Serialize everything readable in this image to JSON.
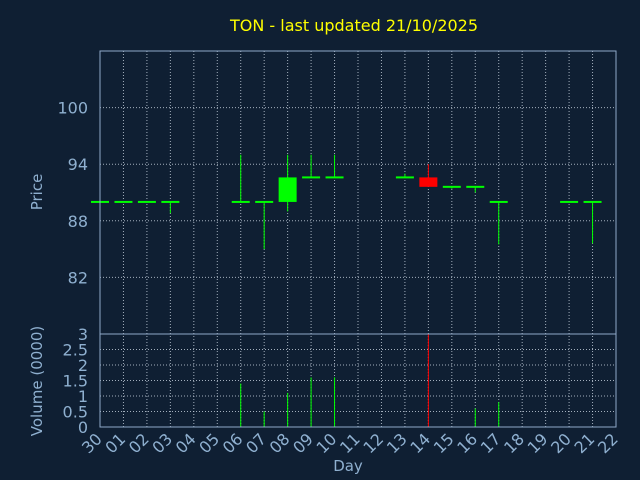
{
  "colors": {
    "background": "#0f1f33",
    "title": "#ffff00",
    "axis_text": "#8fb0d0",
    "frame": "#8fa8c8",
    "grid": "#c8d4e0",
    "up": "#00ff00",
    "down": "#ff0000"
  },
  "chart_data": {
    "type": "candlestick",
    "title": "TON - last updated 21/10/2025",
    "xlabel": "Day",
    "grid": true,
    "x_ticks": [
      "30",
      "01",
      "02",
      "03",
      "04",
      "05",
      "06",
      "07",
      "08",
      "09",
      "10",
      "11",
      "12",
      "13",
      "14",
      "15",
      "16",
      "17",
      "18",
      "19",
      "20",
      "21",
      "22"
    ],
    "price_panel": {
      "ylabel": "Price",
      "ylim": [
        76,
        106
      ],
      "y_ticks": [
        82,
        88,
        94,
        100
      ],
      "y_tick_labels": [
        "82",
        "88",
        "94",
        "100"
      ]
    },
    "volume_panel": {
      "ylabel": "Volume (0000)",
      "ylim": [
        0,
        3
      ],
      "y_ticks": [
        0,
        0.5,
        1,
        1.5,
        2,
        2.5,
        3
      ],
      "y_tick_labels": [
        "0",
        "0.5",
        "1",
        "1.5",
        "2",
        "2.5",
        "3"
      ]
    },
    "candles": [
      {
        "x": "30",
        "open": 90.0,
        "high": 90.0,
        "low": 90.0,
        "close": 90.0
      },
      {
        "x": "01",
        "open": 90.0,
        "high": 90.0,
        "low": 90.0,
        "close": 90.0
      },
      {
        "x": "02",
        "open": 90.0,
        "high": 90.0,
        "low": 90.0,
        "close": 90.0
      },
      {
        "x": "03",
        "open": 90.0,
        "high": 90.0,
        "low": 88.8,
        "close": 90.0
      },
      {
        "x": "06",
        "open": 90.0,
        "high": 95.0,
        "low": 90.0,
        "close": 90.0
      },
      {
        "x": "07",
        "open": 90.0,
        "high": 90.0,
        "low": 85.0,
        "close": 90.0
      },
      {
        "x": "08",
        "open": 90.0,
        "high": 95.0,
        "low": 89.0,
        "close": 92.6
      },
      {
        "x": "09",
        "open": 92.6,
        "high": 95.0,
        "low": 92.6,
        "close": 92.6
      },
      {
        "x": "10",
        "open": 92.6,
        "high": 95.0,
        "low": 92.6,
        "close": 92.6
      },
      {
        "x": "13",
        "open": 92.6,
        "high": 93.0,
        "low": 92.6,
        "close": 92.6
      },
      {
        "x": "14",
        "open": 92.6,
        "high": 94.0,
        "low": 91.6,
        "close": 91.6
      },
      {
        "x": "15",
        "open": 91.6,
        "high": 91.6,
        "low": 91.4,
        "close": 91.6
      },
      {
        "x": "16",
        "open": 91.6,
        "high": 91.6,
        "low": 91.0,
        "close": 91.6
      },
      {
        "x": "17",
        "open": 90.0,
        "high": 90.0,
        "low": 85.5,
        "close": 90.0
      },
      {
        "x": "20",
        "open": 90.0,
        "high": 90.0,
        "low": 90.0,
        "close": 90.0
      },
      {
        "x": "21",
        "open": 90.0,
        "high": 90.0,
        "low": 85.6,
        "close": 90.0
      }
    ],
    "volumes": [
      {
        "x": "06",
        "value": 1.4,
        "direction": "up"
      },
      {
        "x": "07",
        "value": 0.5,
        "direction": "up"
      },
      {
        "x": "08",
        "value": 1.1,
        "direction": "up"
      },
      {
        "x": "09",
        "value": 1.6,
        "direction": "up"
      },
      {
        "x": "10",
        "value": 1.6,
        "direction": "up"
      },
      {
        "x": "14",
        "value": 3.0,
        "direction": "down"
      },
      {
        "x": "16",
        "value": 0.6,
        "direction": "up"
      },
      {
        "x": "17",
        "value": 0.8,
        "direction": "up"
      }
    ]
  }
}
